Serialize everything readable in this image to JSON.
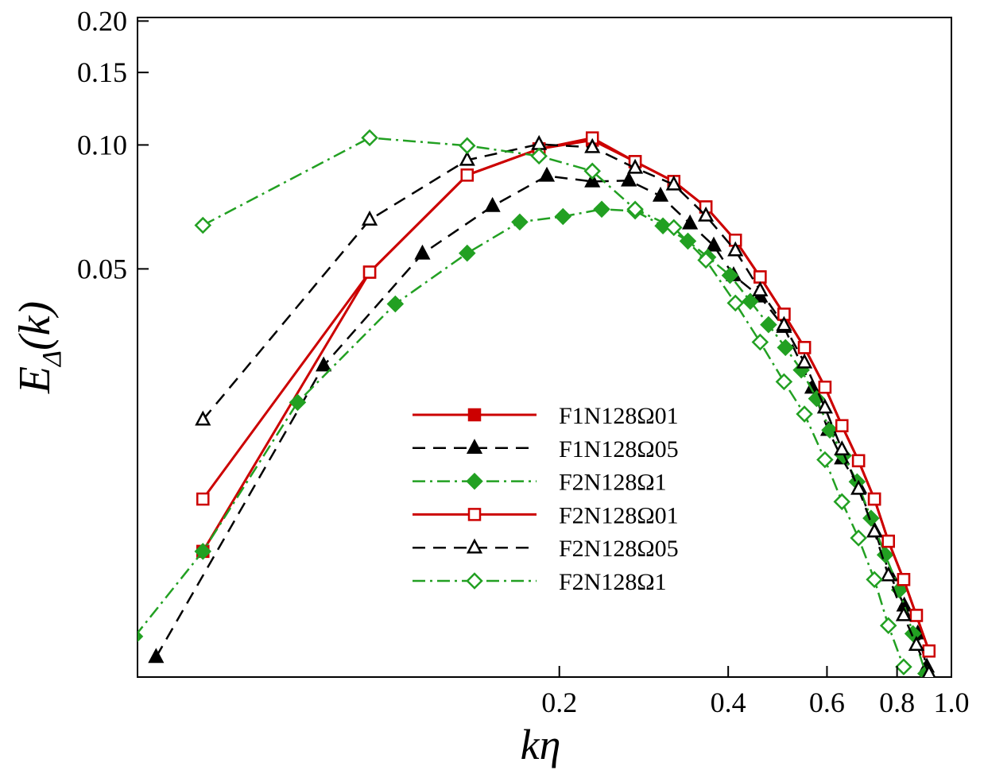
{
  "chart_data": {
    "type": "line",
    "x_label": "kη",
    "y_label": {
      "main": "E",
      "subscript": "Δ",
      "argument": "(k)"
    },
    "xscale": "log",
    "yscale": "log",
    "xlim": [
      0.0354,
      1.0
    ],
    "ylim": [
      0.0051,
      0.204
    ],
    "xticks": [
      0.2,
      0.4,
      0.6,
      0.8,
      {
        "value": 1.0,
        "label": "1.0"
      }
    ],
    "yticks": [
      0.05,
      {
        "value": 0.1,
        "label": "0.10"
      },
      0.15,
      {
        "value": 0.2,
        "label": "0.20"
      }
    ],
    "legend_position": "center",
    "series": [
      {
        "name": "F1N128Ω01",
        "color": "#cc0000",
        "dash": "solid",
        "marker": "square",
        "filled": true,
        "x": [
          0.0463,
          0.0918,
          0.137,
          0.184,
          0.229,
          0.273,
          0.32,
          0.365,
          0.412,
          0.456,
          0.503,
          0.547,
          0.595,
          0.638,
          0.683,
          0.729,
          0.772,
          0.822,
          0.866,
          0.912
        ],
        "values": [
          0.0103,
          0.0491,
          0.0845,
          0.0978,
          0.1027,
          0.0911,
          0.0815,
          0.0707,
          0.0587,
          0.0478,
          0.0388,
          0.0322,
          0.0258,
          0.0208,
          0.0171,
          0.0138,
          0.0109,
          0.0088,
          0.0072,
          0.0059
        ]
      },
      {
        "name": "F1N128Ω05",
        "color": "#000000",
        "dash": "dash",
        "marker": "triangle",
        "filled": true,
        "x": [
          0.0382,
          0.076,
          0.114,
          0.152,
          0.19,
          0.229,
          0.266,
          0.303,
          0.342,
          0.377,
          0.409,
          0.456,
          0.503,
          0.565,
          0.603,
          0.638,
          0.685,
          0.731,
          0.778,
          0.824,
          0.871,
          0.904
        ],
        "values": [
          0.0057,
          0.0291,
          0.0544,
          0.071,
          0.0841,
          0.0815,
          0.0819,
          0.0752,
          0.0644,
          0.0569,
          0.0482,
          0.0428,
          0.0361,
          0.0257,
          0.0203,
          0.0173,
          0.0147,
          0.0115,
          0.009,
          0.0076,
          0.0065,
          0.0054
        ]
      },
      {
        "name": "F2N128Ω1",
        "color": "#22a022",
        "dash": "dashdot",
        "marker": "diamond",
        "filled": true,
        "x": [
          0.035,
          0.0463,
          0.0683,
          0.102,
          0.137,
          0.17,
          0.203,
          0.238,
          0.273,
          0.306,
          0.339,
          0.368,
          0.403,
          0.438,
          0.472,
          0.506,
          0.54,
          0.575,
          0.607,
          0.642,
          0.679,
          0.719,
          0.762,
          0.808,
          0.854,
          0.9
        ],
        "values": [
          0.0064,
          0.0103,
          0.0237,
          0.0411,
          0.0546,
          0.065,
          0.067,
          0.0698,
          0.0691,
          0.0636,
          0.0584,
          0.0534,
          0.0482,
          0.0417,
          0.0366,
          0.0322,
          0.0284,
          0.0242,
          0.0203,
          0.0176,
          0.0152,
          0.0124,
          0.0101,
          0.0083,
          0.0065,
          0.0052
        ]
      },
      {
        "name": "F2N128Ω01",
        "color": "#cc0000",
        "dash": "solid",
        "marker": "square",
        "filled": false,
        "x": [
          0.0463,
          0.0918,
          0.137,
          0.184,
          0.229,
          0.273,
          0.32,
          0.365,
          0.412,
          0.456,
          0.503,
          0.547,
          0.595,
          0.638,
          0.683,
          0.729,
          0.772,
          0.822,
          0.866,
          0.912
        ],
        "values": [
          0.0138,
          0.0491,
          0.0845,
          0.0978,
          0.104,
          0.0911,
          0.0815,
          0.0707,
          0.0587,
          0.0478,
          0.0388,
          0.0322,
          0.0258,
          0.0208,
          0.0171,
          0.0138,
          0.0109,
          0.0088,
          0.0072,
          0.0059
        ]
      },
      {
        "name": "F2N128Ω05",
        "color": "#000000",
        "dash": "dash",
        "marker": "triangle",
        "filled": false,
        "x": [
          0.0463,
          0.0918,
          0.137,
          0.184,
          0.229,
          0.273,
          0.32,
          0.365,
          0.412,
          0.456,
          0.503,
          0.547,
          0.595,
          0.638,
          0.683,
          0.729,
          0.772,
          0.822,
          0.866,
          0.912
        ],
        "values": [
          0.0215,
          0.0658,
          0.0919,
          0.1004,
          0.0987,
          0.0879,
          0.0801,
          0.0673,
          0.0554,
          0.0443,
          0.0365,
          0.0296,
          0.023,
          0.0182,
          0.0146,
          0.0115,
          0.009,
          0.0072,
          0.0061,
          0.0052
        ]
      },
      {
        "name": "F2N128Ω1",
        "color": "#22a022",
        "dash": "dashdot",
        "marker": "diamond",
        "filled": false,
        "x": [
          0.0463,
          0.0918,
          0.137,
          0.184,
          0.229,
          0.273,
          0.32,
          0.365,
          0.412,
          0.456,
          0.503,
          0.547,
          0.595,
          0.638,
          0.683,
          0.729,
          0.772,
          0.822
        ],
        "values": [
          0.0638,
          0.1041,
          0.0996,
          0.094,
          0.0864,
          0.0698,
          0.063,
          0.0525,
          0.0413,
          0.0332,
          0.0266,
          0.0222,
          0.0172,
          0.0136,
          0.0111,
          0.0088,
          0.0068,
          0.0054
        ]
      }
    ]
  }
}
